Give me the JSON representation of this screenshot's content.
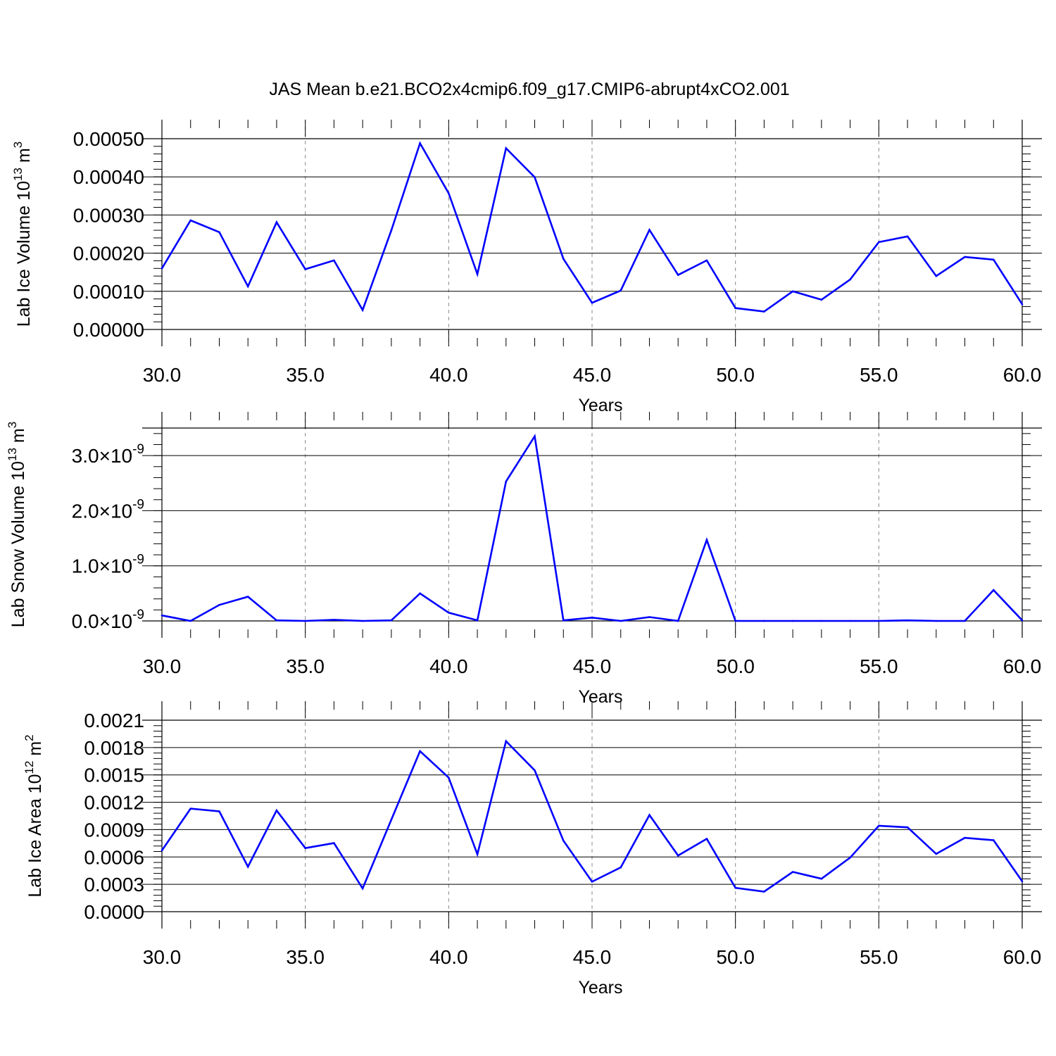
{
  "title": "JAS Mean b.e21.BCO2x4cmip6.f09_g17.CMIP6-abrupt4xCO2.001",
  "line_color": "#0000ff",
  "chart_data": [
    {
      "type": "line",
      "title": "",
      "xlabel": "Years",
      "ylabel": {
        "base": "Lab Ice Volume 10",
        "sup": "13",
        "unit": " m",
        "unit_sup": "3"
      },
      "xlim": [
        30,
        60
      ],
      "ylim": [
        0,
        0.0005
      ],
      "x_ticks": [
        "30.0",
        "35.0",
        "40.0",
        "45.0",
        "50.0",
        "55.0",
        "60.0"
      ],
      "y_ticks": [
        {
          "value": 0.0,
          "label": "0.00000"
        },
        {
          "value": 0.0001,
          "label": "0.00010"
        },
        {
          "value": 0.0002,
          "label": "0.00020"
        },
        {
          "value": 0.0003,
          "label": "0.00030"
        },
        {
          "value": 0.0004,
          "label": "0.00040"
        },
        {
          "value": 0.0005,
          "label": "0.00050"
        }
      ],
      "grid": "vertical-dashed",
      "x": [
        30,
        31,
        32,
        33,
        34,
        35,
        36,
        37,
        38,
        39,
        40,
        41,
        42,
        43,
        44,
        45,
        46,
        47,
        48,
        49,
        50,
        51,
        52,
        53,
        54,
        55,
        56,
        57,
        58,
        59,
        60
      ],
      "series": [
        {
          "values": [
            0.00016,
            0.000286,
            0.000255,
            0.000113,
            0.000281,
            0.000158,
            0.000181,
            5.1e-05,
            0.00026,
            0.000488,
            0.000357,
            0.000145,
            0.000475,
            0.000399,
            0.000185,
            7e-05,
            0.000102,
            0.000261,
            0.000143,
            0.000181,
            5.6e-05,
            4.7e-05,
            0.0001,
            7.8e-05,
            0.000131,
            0.000229,
            0.000244,
            0.00014,
            0.00019,
            0.000183,
            6.6e-05
          ]
        }
      ]
    },
    {
      "type": "line",
      "title": "",
      "xlabel": "Years",
      "ylabel": {
        "base": "Lab Snow Volume 10",
        "sup": "13",
        "unit": " m",
        "unit_sup": "3"
      },
      "xlim": [
        30,
        60
      ],
      "ylim": [
        0,
        3.5e-09
      ],
      "x_ticks": [
        "30.0",
        "35.0",
        "40.0",
        "45.0",
        "50.0",
        "55.0",
        "60.0"
      ],
      "y_ticks": [
        {
          "value": 0.0,
          "mantissa": "0.0",
          "times": "×10",
          "exp": "-9"
        },
        {
          "value": 1e-09,
          "mantissa": "1.0",
          "times": "×10",
          "exp": "-9"
        },
        {
          "value": 2e-09,
          "mantissa": "2.0",
          "times": "×10",
          "exp": "-9"
        },
        {
          "value": 3e-09,
          "mantissa": "3.0",
          "times": "×10",
          "exp": "-9"
        }
      ],
      "grid": "vertical-dashed",
      "x": [
        30,
        31,
        32,
        33,
        34,
        35,
        36,
        37,
        38,
        39,
        40,
        41,
        42,
        43,
        44,
        45,
        46,
        47,
        48,
        49,
        50,
        51,
        52,
        53,
        54,
        55,
        56,
        57,
        58,
        59,
        60
      ],
      "series": [
        {
          "values": [
            1e-10,
            0.0,
            2.9e-10,
            4.4e-10,
            1e-11,
            0.0,
            2e-11,
            0.0,
            1e-11,
            5e-10,
            1.5e-10,
            1e-11,
            2.53e-09,
            3.35e-09,
            1e-11,
            6e-11,
            0.0,
            7e-11,
            0.0,
            1.47e-09,
            0.0,
            0.0,
            0.0,
            0.0,
            0.0,
            0.0,
            1e-11,
            0.0,
            0.0,
            5.6e-10,
            1e-11
          ]
        }
      ]
    },
    {
      "type": "line",
      "title": "",
      "xlabel": "Years",
      "ylabel": {
        "base": "Lab Ice Area 10",
        "sup": "12",
        "unit": " m",
        "unit_sup": "2"
      },
      "xlim": [
        30,
        60
      ],
      "ylim": [
        0,
        0.0021
      ],
      "x_ticks": [
        "30.0",
        "35.0",
        "40.0",
        "45.0",
        "50.0",
        "55.0",
        "60.0"
      ],
      "y_ticks": [
        {
          "value": 0.0,
          "label": "0.0000"
        },
        {
          "value": 0.0003,
          "label": "0.0003"
        },
        {
          "value": 0.0006,
          "label": "0.0006"
        },
        {
          "value": 0.0009,
          "label": "0.0009"
        },
        {
          "value": 0.0012,
          "label": "0.0012"
        },
        {
          "value": 0.0015,
          "label": "0.0015"
        },
        {
          "value": 0.0018,
          "label": "0.0018"
        },
        {
          "value": 0.0021,
          "label": "0.0021"
        }
      ],
      "grid": "vertical-dashed",
      "x": [
        30,
        31,
        32,
        33,
        34,
        35,
        36,
        37,
        38,
        39,
        40,
        41,
        42,
        43,
        44,
        45,
        46,
        47,
        48,
        49,
        50,
        51,
        52,
        53,
        54,
        55,
        56,
        57,
        58,
        59,
        60
      ],
      "series": [
        {
          "values": [
            0.000672,
            0.00113,
            0.0011,
            0.000493,
            0.00111,
            0.000697,
            0.000752,
            0.000255,
            0.00101,
            0.00176,
            0.00147,
            0.00063,
            0.00187,
            0.00155,
            0.000779,
            0.000329,
            0.000485,
            0.00106,
            0.000615,
            0.000799,
            0.000261,
            0.00022,
            0.000436,
            0.000361,
            0.000593,
            0.000942,
            0.000925,
            0.000634,
            0.00081,
            0.000784,
            0.000333
          ]
        }
      ]
    }
  ]
}
